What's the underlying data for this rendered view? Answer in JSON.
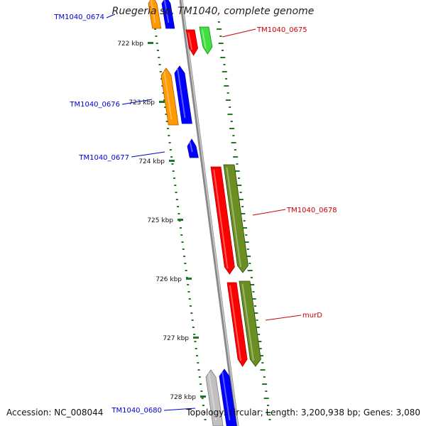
{
  "map": {
    "title": "Ruegeria sp. TM1040, complete genome",
    "accession": "Accession: NC_008044",
    "summary": "Topology: circular; Length: 3,200,938 bp; Genes: 3,080"
  },
  "colors": {
    "orange": "#ff9a00",
    "blue": "#0000ff",
    "red": "#ff0000",
    "green": "#44dd44",
    "olive": "#6b8e23",
    "gray": "#c0c0c0",
    "backbone": "#888888",
    "tick": "#227722",
    "label_left": "#0000cc",
    "label_right": "#cc0000"
  },
  "ticks": [
    {
      "label": "722 kbp"
    },
    {
      "label": "723 kbp"
    },
    {
      "label": "724 kbp"
    },
    {
      "label": "725 kbp"
    },
    {
      "label": "726 kbp"
    },
    {
      "label": "727 kbp"
    },
    {
      "label": "728 kbp"
    }
  ],
  "genes": [
    {
      "name": "TM1040_0674",
      "strand": "minus",
      "color_key": "blue"
    },
    {
      "name": "TM1040_0674",
      "strand": "minus",
      "color_key": "orange"
    },
    {
      "name": "TM1040_0675",
      "strand": "plus",
      "color_key": "red"
    },
    {
      "name": "TM1040_0675",
      "strand": "plus",
      "color_key": "green"
    },
    {
      "name": "TM1040_0676",
      "strand": "minus",
      "color_key": "orange"
    },
    {
      "name": "TM1040_0676",
      "strand": "minus",
      "color_key": "blue"
    },
    {
      "name": "TM1040_0677",
      "strand": "minus",
      "color_key": "blue"
    },
    {
      "name": "TM1040_0678",
      "strand": "plus",
      "color_key": "red"
    },
    {
      "name": "TM1040_0678",
      "strand": "plus",
      "color_key": "olive"
    },
    {
      "name": "murD",
      "strand": "plus",
      "color_key": "red"
    },
    {
      "name": "murD",
      "strand": "plus",
      "color_key": "olive"
    },
    {
      "name": "TM1040_0680",
      "strand": "minus",
      "color_key": "gray"
    },
    {
      "name": "TM1040_0680",
      "strand": "minus",
      "color_key": "blue"
    }
  ],
  "labels": [
    {
      "text": "TM1040_0674",
      "side": "left"
    },
    {
      "text": "TM1040_0675",
      "side": "right"
    },
    {
      "text": "TM1040_0676",
      "side": "left"
    },
    {
      "text": "TM1040_0677",
      "side": "left"
    },
    {
      "text": "TM1040_0678",
      "side": "right"
    },
    {
      "text": "murD",
      "side": "right"
    },
    {
      "text": "TM1040_0680",
      "side": "left"
    }
  ]
}
